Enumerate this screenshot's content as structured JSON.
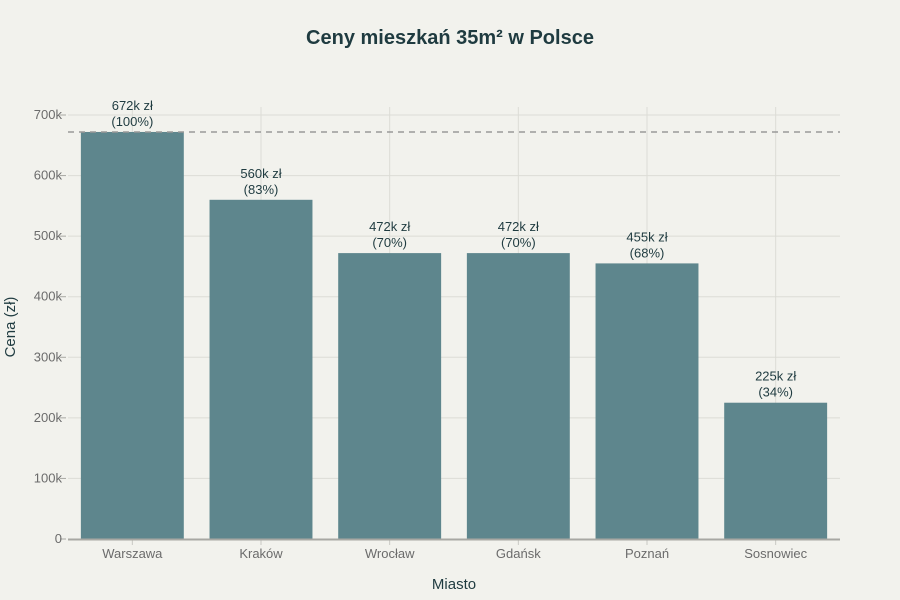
{
  "chart_data": {
    "type": "bar",
    "title": "Ceny mieszkań 35m² w Polsce",
    "xlabel": "Miasto",
    "ylabel": "Cena (zł)",
    "categories": [
      "Warszawa",
      "Kraków",
      "Wrocław",
      "Gdańsk",
      "Poznań",
      "Sosnowiec"
    ],
    "values": [
      672000,
      560000,
      472000,
      472000,
      455000,
      225000
    ],
    "data_labels": [
      "672k zł",
      "560k zł",
      "472k zł",
      "472k zł",
      "455k zł",
      "225k zł"
    ],
    "percent_labels": [
      "(100%)",
      "(83%)",
      "(70%)",
      "(70%)",
      "(68%)",
      "(34%)"
    ],
    "ylim": [
      0,
      700000
    ],
    "yticks": [
      0,
      100000,
      200000,
      300000,
      400000,
      500000,
      600000,
      700000
    ],
    "ytick_labels": [
      "0",
      "100k",
      "200k",
      "300k",
      "400k",
      "500k",
      "600k",
      "700k"
    ],
    "reference_line": {
      "value": 672000,
      "style": "dashed"
    },
    "grid": true,
    "colors": {
      "bar": "#5e868d",
      "text": "#1f3b40",
      "grid": "#dcdcd6",
      "refline": "#999999"
    }
  }
}
